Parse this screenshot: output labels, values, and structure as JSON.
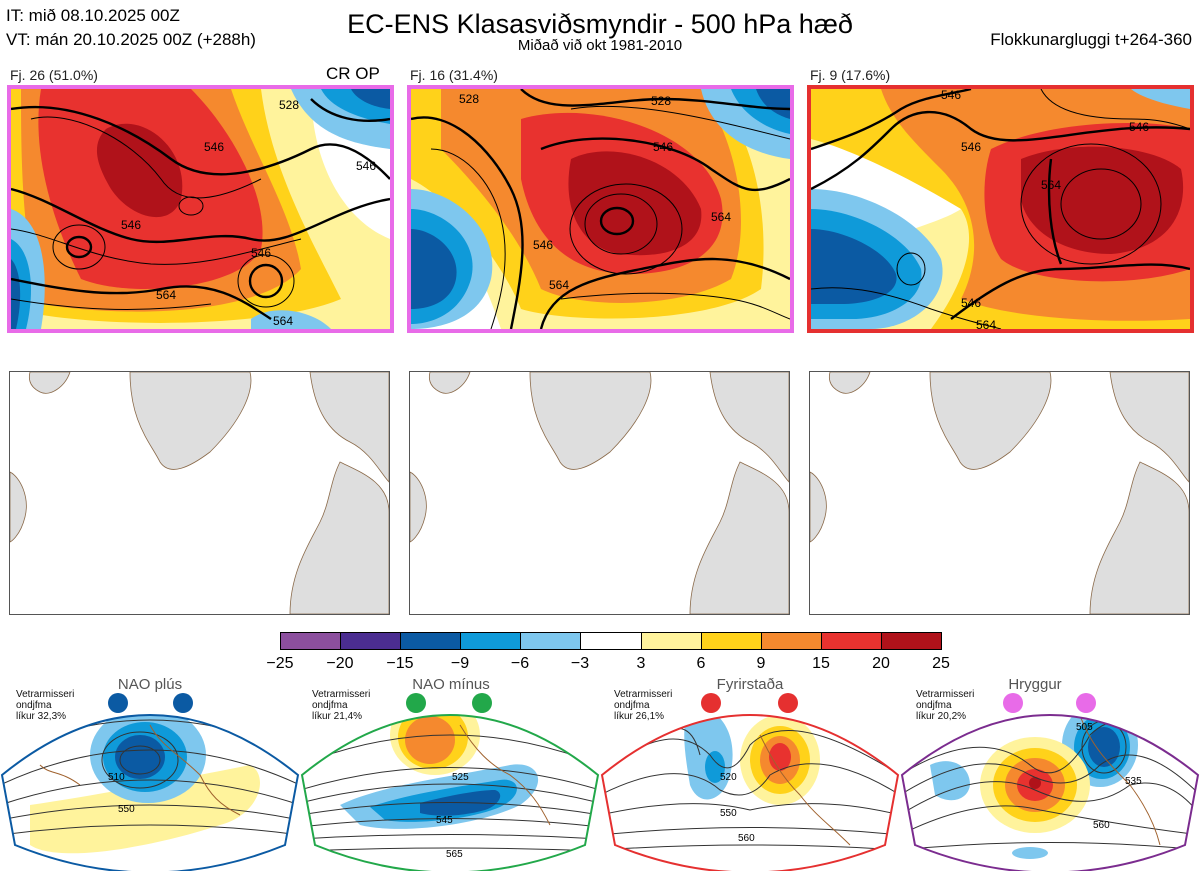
{
  "header": {
    "init_time": "IT: mið 08.10.2025 00Z",
    "valid_time": "VT: mán 20.10.2025 00Z  (+288h)",
    "title": "EC-ENS Klasasviðsmyndir - 500 hPa hæð",
    "subtitle": "Miðað við okt 1981-2010",
    "window": "Flokkunargluggi t+264-360"
  },
  "clusters": [
    {
      "label": "Fj. 26 (51.0%)",
      "extra": "CR OP",
      "border": "#e86be8",
      "contours": [
        "546",
        "546",
        "546",
        "546",
        "564",
        "564",
        "528"
      ]
    },
    {
      "label": "Fj. 16 (31.4%)",
      "extra": "",
      "border": "#e86be8",
      "contours": [
        "528",
        "528",
        "546",
        "546",
        "564",
        "564"
      ]
    },
    {
      "label": "Fj. 9 (17.6%)",
      "extra": "",
      "border": "#e53030",
      "contours": [
        "546",
        "546",
        "546",
        "564",
        "546",
        "564"
      ]
    }
  ],
  "colorbar": {
    "colors": [
      "#8c4f9e",
      "#4b2d91",
      "#0b5aa3",
      "#0f9ad9",
      "#7ec7ee",
      "#ffffff",
      "#fff39c",
      "#ffd21a",
      "#f5892e",
      "#e8322f",
      "#b0121a"
    ],
    "ticks": [
      "−25",
      "−20",
      "−15",
      "−9",
      "−6",
      "−3",
      "3",
      "6",
      "9",
      "15",
      "20",
      "25"
    ]
  },
  "regimes": [
    {
      "name": "NAO plús",
      "stat_line1": "Vetrarmisseri",
      "stat_line2": "ondjfma",
      "stat_line3": "líkur 32,3%",
      "color": "#0b5aa3",
      "contours": [
        "510",
        "550"
      ]
    },
    {
      "name": "NAO mínus",
      "stat_line1": "Vetrarmisseri",
      "stat_line2": "ondjfma",
      "stat_line3": "líkur 21,4%",
      "color": "#22a84a",
      "contours": [
        "525",
        "545",
        "565"
      ]
    },
    {
      "name": "Fyrirstaða",
      "stat_line1": "Vetrarmisseri",
      "stat_line2": "ondjfma",
      "stat_line3": "líkur 26,1%",
      "color": "#e53030",
      "contours": [
        "520",
        "550",
        "560"
      ]
    },
    {
      "name": "Hryggur",
      "stat_line1": "Vetrarmisseri",
      "stat_line2": "ondjfma",
      "stat_line3": "líkur 20,2%",
      "color": "#e86be8",
      "contours": [
        "505",
        "535",
        "560"
      ]
    }
  ]
}
